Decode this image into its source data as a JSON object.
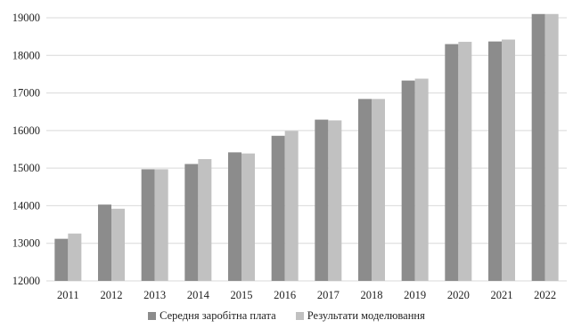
{
  "chart_data": {
    "type": "bar",
    "categories": [
      "2011",
      "2012",
      "2013",
      "2014",
      "2015",
      "2016",
      "2017",
      "2018",
      "2019",
      "2020",
      "2021",
      "2022"
    ],
    "series": [
      {
        "name": "Середня заробітна плата",
        "color": "#8c8c8c",
        "values": [
          13120,
          14030,
          14970,
          15110,
          15420,
          15860,
          16290,
          16840,
          17330,
          18300,
          18370,
          19100
        ]
      },
      {
        "name": "Результати моделювання",
        "color": "#c1c1c1",
        "values": [
          13260,
          13920,
          14970,
          15240,
          15390,
          15990,
          16270,
          16840,
          17380,
          18360,
          18420,
          19100
        ]
      }
    ],
    "ylim": [
      12000,
      19000
    ],
    "yticks": [
      12000,
      13000,
      14000,
      15000,
      16000,
      17000,
      18000,
      19000
    ],
    "grid": true,
    "legend_position": "bottom"
  }
}
